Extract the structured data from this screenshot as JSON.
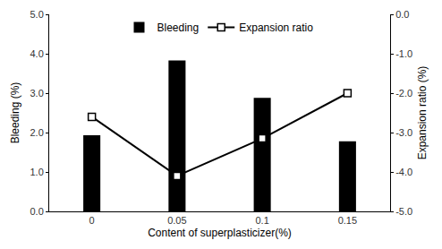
{
  "chart_data": {
    "type": "bar",
    "categories": [
      "0",
      "0.05",
      "0.1",
      "0.15"
    ],
    "x_label": "Content of superplasticizer(%)",
    "y_label": "Bleeding (%)",
    "y2_label": "Expansion ratio (%)",
    "series": [
      {
        "name": "Bleeding",
        "type": "bar",
        "color": "#000000",
        "values": [
          1.93,
          3.83,
          2.88,
          1.78
        ]
      },
      {
        "name": "Expansion ratio",
        "type": "line",
        "color": "#000000",
        "marker": "square",
        "axis": "y2",
        "values": [
          -2.6,
          -4.1,
          -3.15,
          -2.0
        ]
      }
    ],
    "ylim": [
      0,
      5
    ],
    "yticks": [
      {
        "value": 0,
        "label": "0.0"
      },
      {
        "value": 1,
        "label": "1.0"
      },
      {
        "value": 2,
        "label": "2.0"
      },
      {
        "value": 3,
        "label": "3.0"
      },
      {
        "value": 4,
        "label": "4.0"
      },
      {
        "value": 5,
        "label": "5.0"
      }
    ],
    "y2lim": [
      -5,
      0
    ],
    "y2ticks": [
      {
        "value": -5,
        "label": "-5.0"
      },
      {
        "value": -4,
        "label": "-4.0"
      },
      {
        "value": -3,
        "label": "-3.0"
      },
      {
        "value": -2,
        "label": "-2.0"
      },
      {
        "value": -1,
        "label": "-1.0"
      },
      {
        "value": 0,
        "label": "0.0"
      }
    ],
    "legend": "top",
    "grid": false
  }
}
